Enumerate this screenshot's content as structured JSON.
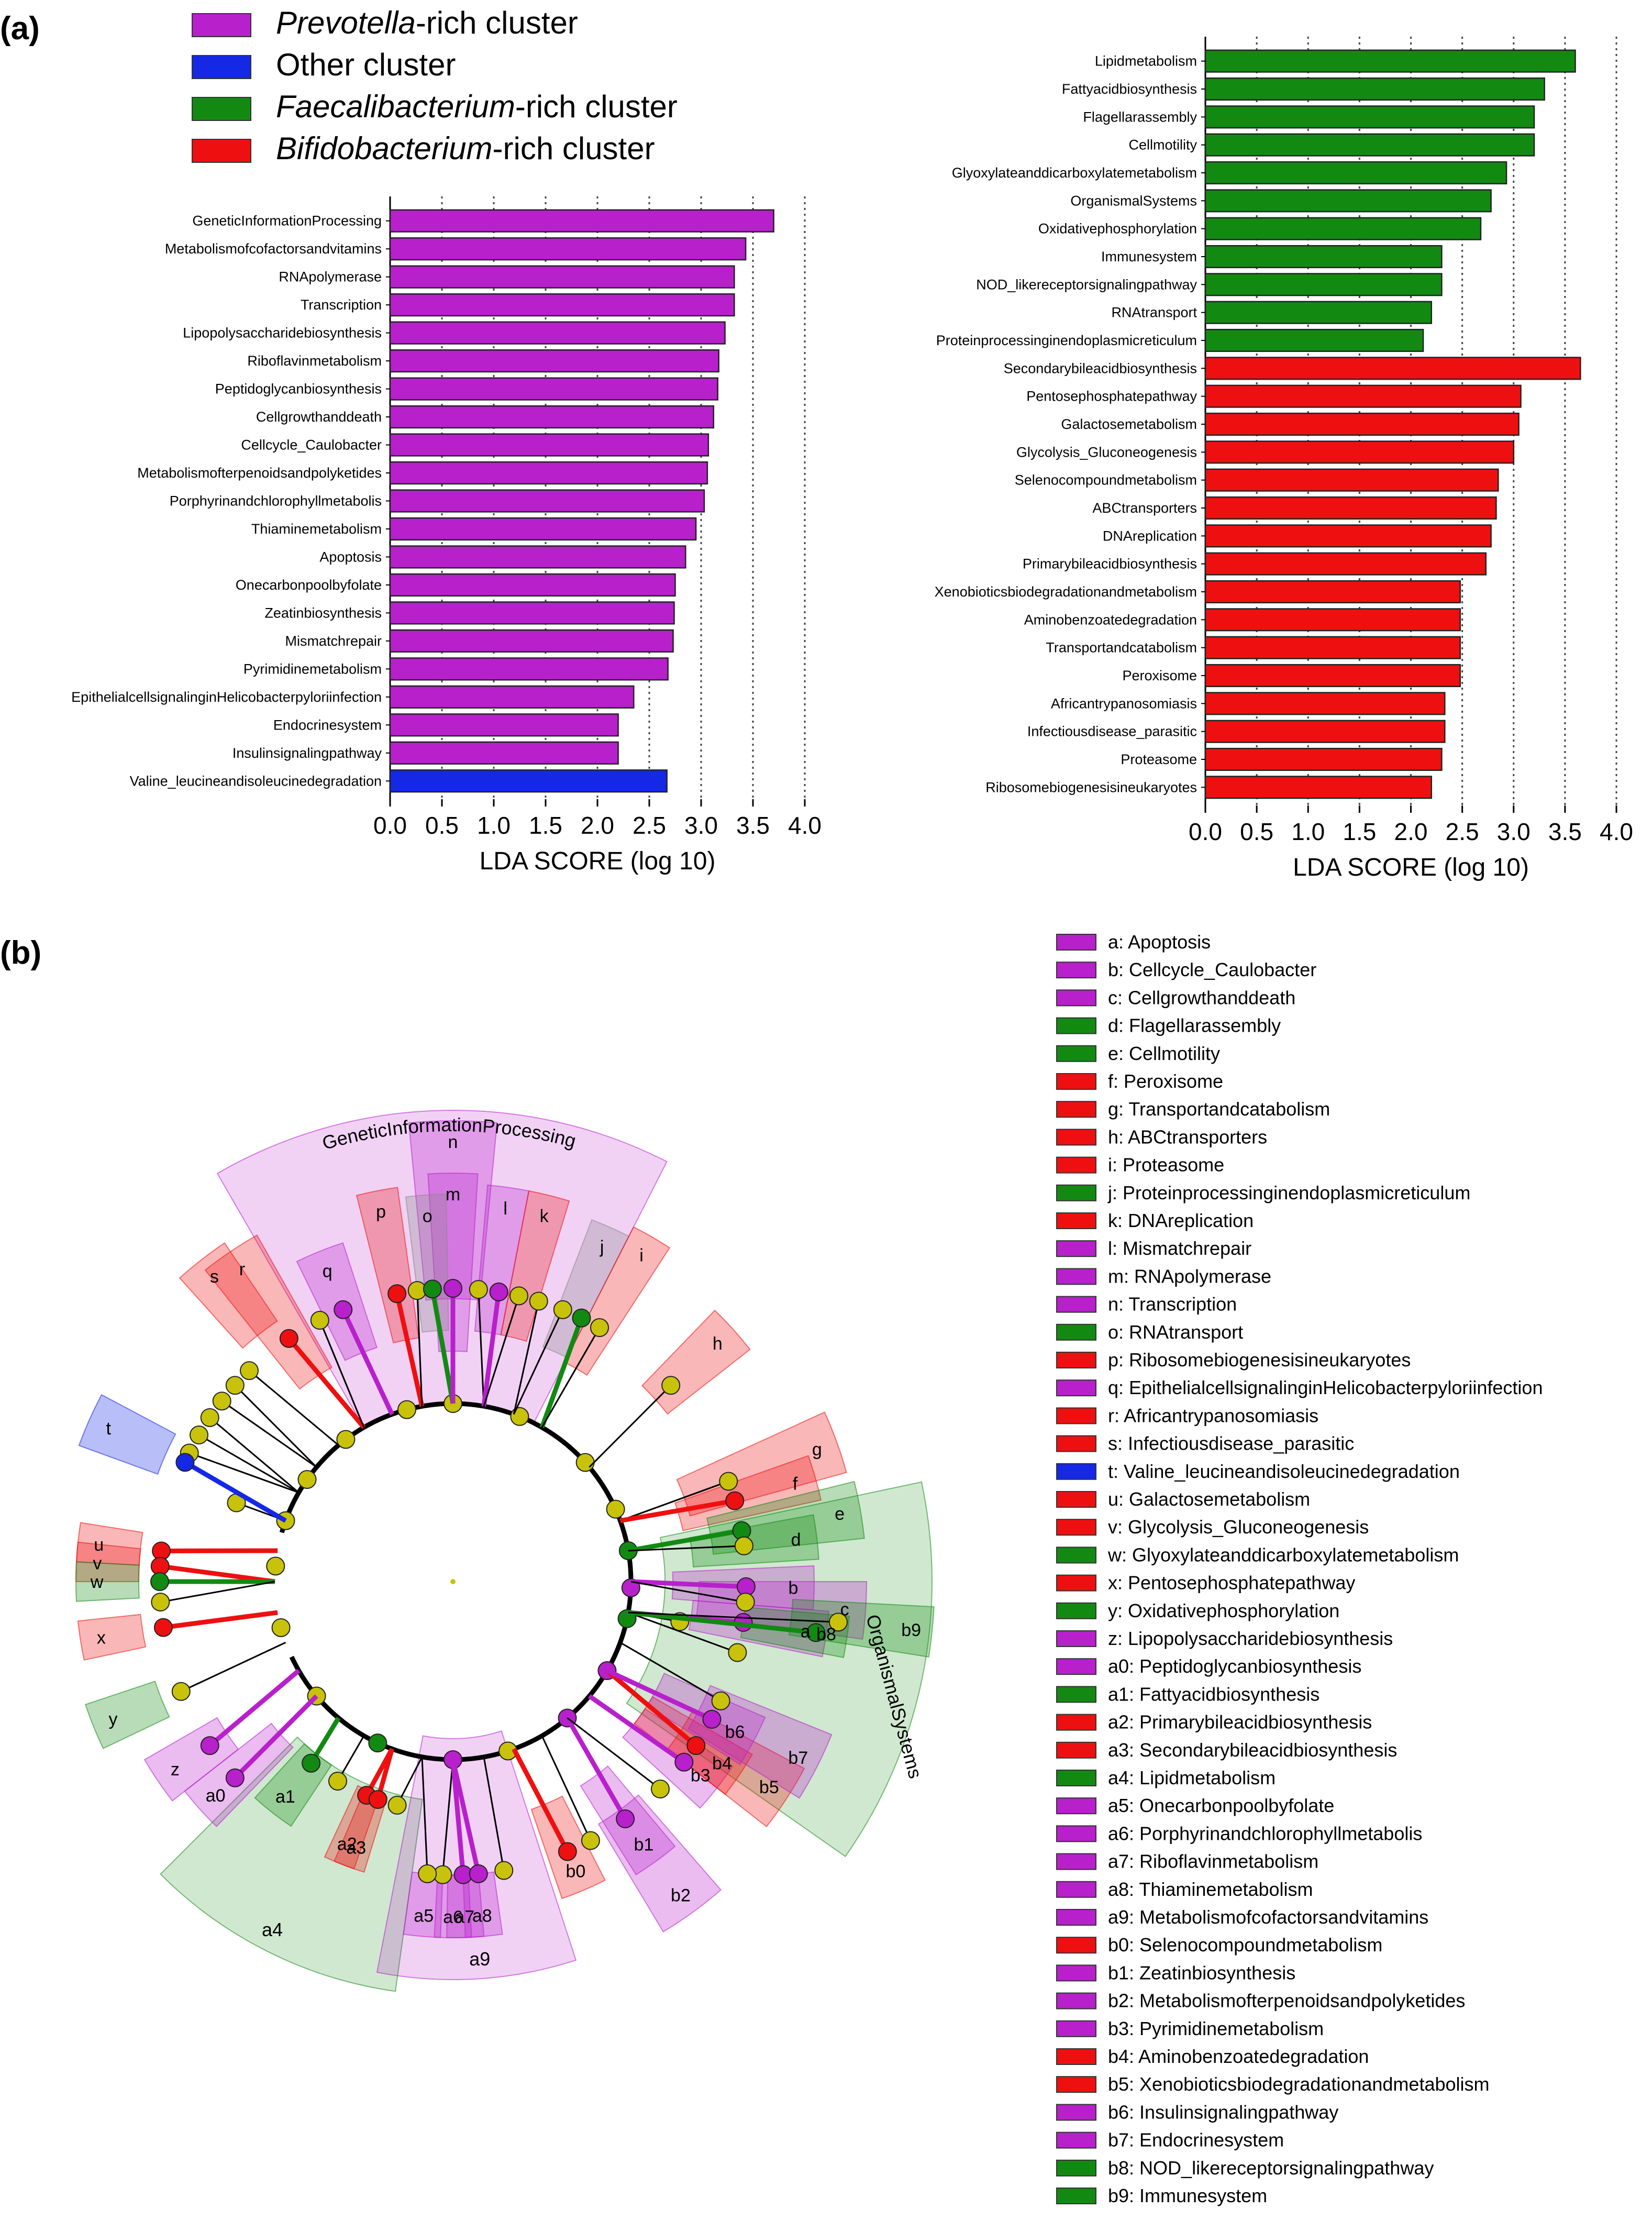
{
  "panel_a_label": "(a)",
  "panel_b_label": "(b)",
  "colors": {
    "prevotella": "#b820cc",
    "other": "#1428e6",
    "faecali": "#128a12",
    "bifido": "#ee1010",
    "node": "#c8c30a"
  },
  "legend": [
    {
      "italic": "Prevotella",
      "rest": "-rich cluster",
      "color": "#b820cc"
    },
    {
      "italic": "",
      "rest": "Other cluster",
      "color": "#1428e6"
    },
    {
      "italic": "Faecalibacterium",
      "rest": "-rich cluster",
      "color": "#128a12"
    },
    {
      "italic": "Bifidobacterium",
      "rest": "-rich cluster",
      "color": "#ee1010"
    }
  ],
  "chart_data": [
    {
      "type": "bar",
      "orientation": "horizontal",
      "xlabel": "LDA SCORE (log 10)",
      "xlim": [
        0,
        4
      ],
      "xticks": [
        "0.0",
        "0.5",
        "1.0",
        "1.5",
        "2.0",
        "2.5",
        "3.0",
        "3.5",
        "4.0"
      ],
      "bars": [
        {
          "label": "GeneticInformationProcessing",
          "value": 3.7,
          "color": "#b820cc"
        },
        {
          "label": "Metabolismofcofactorsandvitamins",
          "value": 3.43,
          "color": "#b820cc"
        },
        {
          "label": "RNApolymerase",
          "value": 3.32,
          "color": "#b820cc"
        },
        {
          "label": "Transcription",
          "value": 3.32,
          "color": "#b820cc"
        },
        {
          "label": "Lipopolysaccharidebiosynthesis",
          "value": 3.23,
          "color": "#b820cc"
        },
        {
          "label": "Riboflavinmetabolism",
          "value": 3.17,
          "color": "#b820cc"
        },
        {
          "label": "Peptidoglycanbiosynthesis",
          "value": 3.16,
          "color": "#b820cc"
        },
        {
          "label": "Cellgrowthanddeath",
          "value": 3.12,
          "color": "#b820cc"
        },
        {
          "label": "Cellcycle_Caulobacter",
          "value": 3.07,
          "color": "#b820cc"
        },
        {
          "label": "Metabolismofterpenoidsandpolyketides",
          "value": 3.06,
          "color": "#b820cc"
        },
        {
          "label": "Porphyrinandchlorophyllmetabolis",
          "value": 3.03,
          "color": "#b820cc"
        },
        {
          "label": "Thiaminemetabolism",
          "value": 2.95,
          "color": "#b820cc"
        },
        {
          "label": "Apoptosis",
          "value": 2.85,
          "color": "#b820cc"
        },
        {
          "label": "Onecarbonpoolbyfolate",
          "value": 2.75,
          "color": "#b820cc"
        },
        {
          "label": "Zeatinbiosynthesis",
          "value": 2.74,
          "color": "#b820cc"
        },
        {
          "label": "Mismatchrepair",
          "value": 2.73,
          "color": "#b820cc"
        },
        {
          "label": "Pyrimidinemetabolism",
          "value": 2.68,
          "color": "#b820cc"
        },
        {
          "label": "EpithelialcellsignalinginHelicobacterpyloriinfection",
          "value": 2.35,
          "color": "#b820cc"
        },
        {
          "label": "Endocrinesystem",
          "value": 2.2,
          "color": "#b820cc"
        },
        {
          "label": "Insulinsignalingpathway",
          "value": 2.2,
          "color": "#b820cc"
        },
        {
          "label": "Valine_leucineandisoleucinedegradation",
          "value": 2.67,
          "color": "#1428e6"
        }
      ]
    },
    {
      "type": "bar",
      "orientation": "horizontal",
      "xlabel": "LDA SCORE (log 10)",
      "xlim": [
        0,
        4
      ],
      "xticks": [
        "0.0",
        "0.5",
        "1.0",
        "1.5",
        "2.0",
        "2.5",
        "3.0",
        "3.5",
        "4.0"
      ],
      "bars": [
        {
          "label": "Lipidmetabolism",
          "value": 3.6,
          "color": "#128a12"
        },
        {
          "label": "Fattyacidbiosynthesis",
          "value": 3.3,
          "color": "#128a12"
        },
        {
          "label": "Flagellarassembly",
          "value": 3.2,
          "color": "#128a12"
        },
        {
          "label": "Cellmotility",
          "value": 3.2,
          "color": "#128a12"
        },
        {
          "label": "Glyoxylateanddicarboxylatemetabolism",
          "value": 2.93,
          "color": "#128a12"
        },
        {
          "label": "OrganismalSystems",
          "value": 2.78,
          "color": "#128a12"
        },
        {
          "label": "Oxidativephosphorylation",
          "value": 2.68,
          "color": "#128a12"
        },
        {
          "label": "Immunesystem",
          "value": 2.3,
          "color": "#128a12"
        },
        {
          "label": "NOD_likereceptorsignalingpathway",
          "value": 2.3,
          "color": "#128a12"
        },
        {
          "label": "RNAtransport",
          "value": 2.2,
          "color": "#128a12"
        },
        {
          "label": "Proteinprocessinginendoplasmicreticulum",
          "value": 2.12,
          "color": "#128a12"
        },
        {
          "label": "Secondarybileacidbiosynthesis",
          "value": 3.65,
          "color": "#ee1010"
        },
        {
          "label": "Pentosephosphatepathway",
          "value": 3.07,
          "color": "#ee1010"
        },
        {
          "label": "Galactosemetabolism",
          "value": 3.05,
          "color": "#ee1010"
        },
        {
          "label": "Glycolysis_Gluconeogenesis",
          "value": 3.0,
          "color": "#ee1010"
        },
        {
          "label": "Selenocompoundmetabolism",
          "value": 2.85,
          "color": "#ee1010"
        },
        {
          "label": "ABCtransporters",
          "value": 2.83,
          "color": "#ee1010"
        },
        {
          "label": "DNAreplication",
          "value": 2.78,
          "color": "#ee1010"
        },
        {
          "label": "Primarybileacidbiosynthesis",
          "value": 2.73,
          "color": "#ee1010"
        },
        {
          "label": "Xenobioticsbiodegradationandmetabolism",
          "value": 2.48,
          "color": "#ee1010"
        },
        {
          "label": "Aminobenzoatedegradation",
          "value": 2.48,
          "color": "#ee1010"
        },
        {
          "label": "Transportandcatabolism",
          "value": 2.48,
          "color": "#ee1010"
        },
        {
          "label": "Peroxisome",
          "value": 2.48,
          "color": "#ee1010"
        },
        {
          "label": "Africantrypanosomiasis",
          "value": 2.33,
          "color": "#ee1010"
        },
        {
          "label": "Infectiousdisease_parasitic",
          "value": 2.33,
          "color": "#ee1010"
        },
        {
          "label": "Proteasome",
          "value": 2.3,
          "color": "#ee1010"
        },
        {
          "label": "Ribosomebiogenesisineukaryotes",
          "value": 2.2,
          "color": "#ee1010"
        }
      ]
    },
    {
      "type": "cladogram",
      "center_label": "",
      "sector_labels": [
        {
          "text": "GeneticInformationProcessing",
          "color": "#b820cc"
        },
        {
          "text": "OrganismalSystems",
          "color": "#128a12"
        },
        {
          "text": "a4",
          "color": "#128a12"
        },
        {
          "text": "a9",
          "color": "#b820cc"
        }
      ],
      "highlight_letters": [
        {
          "t": "n",
          "c": "#b820cc"
        },
        {
          "t": "m",
          "c": "#b820cc"
        },
        {
          "t": "l",
          "c": "#b820cc"
        },
        {
          "t": "k",
          "c": "#ee1010"
        },
        {
          "t": "p",
          "c": "#ee1010"
        },
        {
          "t": "o",
          "c": "#888888"
        },
        {
          "t": "j",
          "c": "#888888"
        },
        {
          "t": "i",
          "c": "#ee1010"
        },
        {
          "t": "h",
          "c": "#ee1010"
        },
        {
          "t": "q",
          "c": "#b820cc"
        },
        {
          "t": "s",
          "c": "#ee1010"
        },
        {
          "t": "r",
          "c": "#ee1010"
        },
        {
          "t": "t",
          "c": "#1428e6"
        },
        {
          "t": "g",
          "c": "#ee1010"
        },
        {
          "t": "f",
          "c": "#ee1010"
        },
        {
          "t": "e",
          "c": "#128a12"
        },
        {
          "t": "d",
          "c": "#128a12"
        },
        {
          "t": "c",
          "c": "#b820cc"
        },
        {
          "t": "b",
          "c": "#b820cc"
        },
        {
          "t": "a",
          "c": "#b820cc"
        },
        {
          "t": "u",
          "c": "#ee1010"
        },
        {
          "t": "v",
          "c": "#ee1010"
        },
        {
          "t": "w",
          "c": "#128a12"
        },
        {
          "t": "x",
          "c": "#ee1010"
        },
        {
          "t": "y",
          "c": "#128a12"
        },
        {
          "t": "z",
          "c": "#b820cc"
        },
        {
          "t": "a0",
          "c": "#b820cc"
        },
        {
          "t": "a1",
          "c": "#128a12"
        },
        {
          "t": "a2",
          "c": "#ee1010"
        },
        {
          "t": "a3",
          "c": "#ee1010"
        },
        {
          "t": "a5",
          "c": "#b820cc"
        },
        {
          "t": "a6",
          "c": "#b820cc"
        },
        {
          "t": "a7",
          "c": "#b820cc"
        },
        {
          "t": "a8",
          "c": "#b820cc"
        },
        {
          "t": "b0",
          "c": "#ee1010"
        },
        {
          "t": "b1",
          "c": "#b820cc"
        },
        {
          "t": "b2",
          "c": "#b820cc"
        },
        {
          "t": "b3",
          "c": "#b820cc"
        },
        {
          "t": "b4",
          "c": "#ee1010"
        },
        {
          "t": "b5",
          "c": "#ee1010"
        },
        {
          "t": "b6",
          "c": "#b820cc"
        },
        {
          "t": "b7",
          "c": "#b820cc"
        },
        {
          "t": "b8",
          "c": "#128a12"
        },
        {
          "t": "b9",
          "c": "#128a12"
        }
      ]
    }
  ],
  "clado_legend": [
    {
      "text": "a: Apoptosis",
      "color": "#b820cc"
    },
    {
      "text": "b: Cellcycle_Caulobacter",
      "color": "#b820cc"
    },
    {
      "text": "c: Cellgrowthanddeath",
      "color": "#b820cc"
    },
    {
      "text": "d: Flagellarassembly",
      "color": "#128a12"
    },
    {
      "text": "e: Cellmotility",
      "color": "#128a12"
    },
    {
      "text": "f: Peroxisome",
      "color": "#ee1010"
    },
    {
      "text": "g: Transportandcatabolism",
      "color": "#ee1010"
    },
    {
      "text": "h: ABCtransporters",
      "color": "#ee1010"
    },
    {
      "text": "i: Proteasome",
      "color": "#ee1010"
    },
    {
      "text": "j: Proteinprocessinginendoplasmicreticulum",
      "color": "#128a12"
    },
    {
      "text": "k: DNAreplication",
      "color": "#ee1010"
    },
    {
      "text": "l: Mismatchrepair",
      "color": "#b820cc"
    },
    {
      "text": "m: RNApolymerase",
      "color": "#b820cc"
    },
    {
      "text": "n: Transcription",
      "color": "#b820cc"
    },
    {
      "text": "o: RNAtransport",
      "color": "#128a12"
    },
    {
      "text": "p: Ribosomebiogenesisineukaryotes",
      "color": "#ee1010"
    },
    {
      "text": "q: EpithelialcellsignalinginHelicobacterpyloriinfection",
      "color": "#b820cc"
    },
    {
      "text": "r: Africantrypanosomiasis",
      "color": "#ee1010"
    },
    {
      "text": "s: Infectiousdisease_parasitic",
      "color": "#ee1010"
    },
    {
      "text": "t: Valine_leucineandisoleucinedegradation",
      "color": "#1428e6"
    },
    {
      "text": "u: Galactosemetabolism",
      "color": "#ee1010"
    },
    {
      "text": "v: Glycolysis_Gluconeogenesis",
      "color": "#ee1010"
    },
    {
      "text": "w: Glyoxylateanddicarboxylatemetabolism",
      "color": "#128a12"
    },
    {
      "text": "x: Pentosephosphatepathway",
      "color": "#ee1010"
    },
    {
      "text": "y: Oxidativephosphorylation",
      "color": "#128a12"
    },
    {
      "text": "z: Lipopolysaccharidebiosynthesis",
      "color": "#b820cc"
    },
    {
      "text": "a0: Peptidoglycanbiosynthesis",
      "color": "#b820cc"
    },
    {
      "text": "a1: Fattyacidbiosynthesis",
      "color": "#128a12"
    },
    {
      "text": "a2: Primarybileacidbiosynthesis",
      "color": "#ee1010"
    },
    {
      "text": "a3: Secondarybileacidbiosynthesis",
      "color": "#ee1010"
    },
    {
      "text": "a4: Lipidmetabolism",
      "color": "#128a12"
    },
    {
      "text": "a5: Onecarbonpoolbyfolate",
      "color": "#b820cc"
    },
    {
      "text": "a6: Porphyrinandchlorophyllmetabolis",
      "color": "#b820cc"
    },
    {
      "text": "a7: Riboflavinmetabolism",
      "color": "#b820cc"
    },
    {
      "text": "a8: Thiaminemetabolism",
      "color": "#b820cc"
    },
    {
      "text": "a9: Metabolismofcofactorsandvitamins",
      "color": "#b820cc"
    },
    {
      "text": "b0: Selenocompoundmetabolism",
      "color": "#ee1010"
    },
    {
      "text": "b1: Zeatinbiosynthesis",
      "color": "#b820cc"
    },
    {
      "text": "b2: Metabolismofterpenoidsandpolyketides",
      "color": "#b820cc"
    },
    {
      "text": "b3: Pyrimidinemetabolism",
      "color": "#b820cc"
    },
    {
      "text": "b4: Aminobenzoatedegradation",
      "color": "#ee1010"
    },
    {
      "text": "b5: Xenobioticsbiodegradationandmetabolism",
      "color": "#ee1010"
    },
    {
      "text": "b6: Insulinsignalingpathway",
      "color": "#b820cc"
    },
    {
      "text": "b7: Endocrinesystem",
      "color": "#b820cc"
    },
    {
      "text": "b8: NOD_likereceptorsignalingpathway",
      "color": "#128a12"
    },
    {
      "text": "b9: Immunesystem",
      "color": "#128a12"
    }
  ]
}
